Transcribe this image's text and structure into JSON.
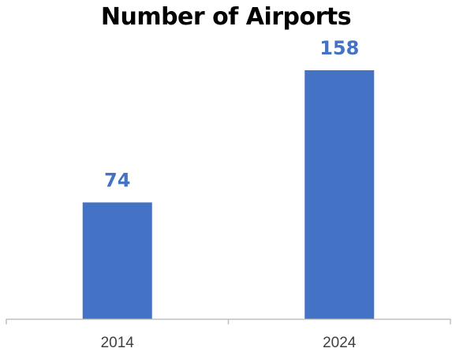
{
  "colors": {
    "bar": "#4472C4",
    "data_label": "#4472C4",
    "axis": "#BFBFBF"
  },
  "chart_data": {
    "type": "bar",
    "title": "Number of Airports",
    "xlabel": "",
    "ylabel": "",
    "categories": [
      "2014",
      "2024"
    ],
    "values": [
      74,
      158
    ],
    "data_labels": [
      "74",
      "158"
    ],
    "ylim": [
      0,
      158
    ],
    "grid": false,
    "legend": "none"
  }
}
